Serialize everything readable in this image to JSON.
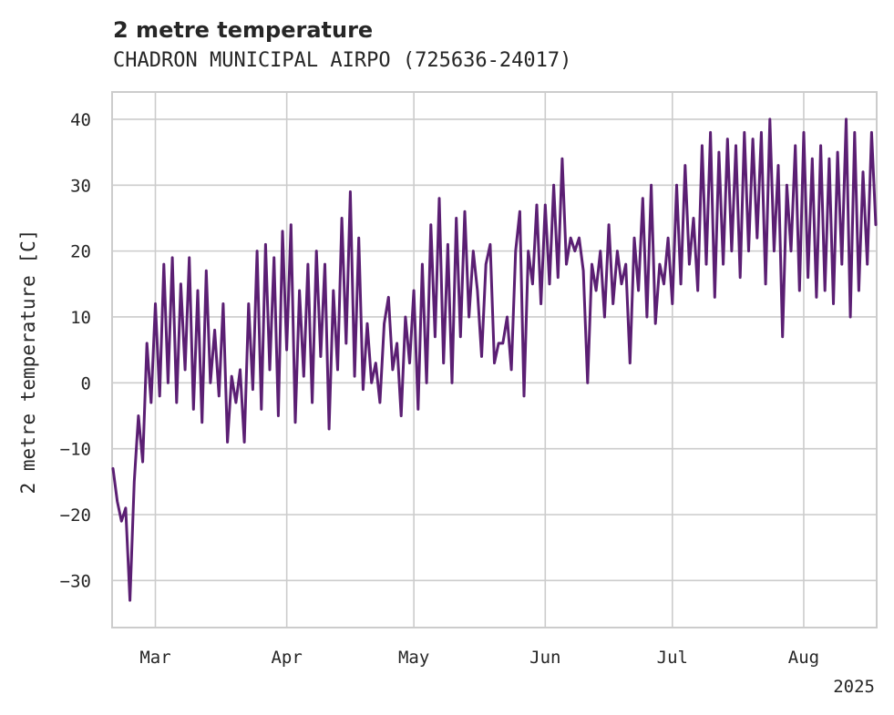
{
  "chart_data": {
    "type": "line",
    "title": "2 metre temperature",
    "subtitle": "CHADRON MUNICIPAL AIRPO (725636-24017)",
    "xlabel": "",
    "ylabel": "2 metre temperature [C]",
    "x_range": [
      "2025-02-19",
      "2025-08-18"
    ],
    "ylim": [
      -37,
      44
    ],
    "x_ticks": [
      {
        "date": "2025-03-01",
        "label": "Mar"
      },
      {
        "date": "2025-04-01",
        "label": "Apr"
      },
      {
        "date": "2025-05-01",
        "label": "May"
      },
      {
        "date": "2025-06-01",
        "label": "Jun"
      },
      {
        "date": "2025-07-01",
        "label": "Jul"
      },
      {
        "date": "2025-08-01",
        "label": "Aug"
      }
    ],
    "x_offset_label": "2025",
    "y_ticks": [
      40,
      30,
      20,
      10,
      0,
      -10,
      -20,
      -30
    ],
    "grid": true,
    "line_color": "#5b1f73",
    "series": [
      {
        "name": "",
        "points": [
          [
            "2025-02-19",
            -13
          ],
          [
            "2025-02-20",
            -18
          ],
          [
            "2025-02-21",
            -21
          ],
          [
            "2025-02-22",
            -19
          ],
          [
            "2025-02-23",
            -33
          ],
          [
            "2025-02-24",
            -15
          ],
          [
            "2025-02-25",
            -5
          ],
          [
            "2025-02-26",
            -12
          ],
          [
            "2025-02-27",
            6
          ],
          [
            "2025-02-28",
            -3
          ],
          [
            "2025-03-01",
            12
          ],
          [
            "2025-03-02",
            -2
          ],
          [
            "2025-03-03",
            18
          ],
          [
            "2025-03-04",
            0
          ],
          [
            "2025-03-05",
            19
          ],
          [
            "2025-03-06",
            -3
          ],
          [
            "2025-03-07",
            15
          ],
          [
            "2025-03-08",
            2
          ],
          [
            "2025-03-09",
            19
          ],
          [
            "2025-03-10",
            -4
          ],
          [
            "2025-03-11",
            14
          ],
          [
            "2025-03-12",
            -6
          ],
          [
            "2025-03-13",
            17
          ],
          [
            "2025-03-14",
            0
          ],
          [
            "2025-03-15",
            8
          ],
          [
            "2025-03-16",
            -2
          ],
          [
            "2025-03-17",
            12
          ],
          [
            "2025-03-18",
            -9
          ],
          [
            "2025-03-19",
            1
          ],
          [
            "2025-03-20",
            -3
          ],
          [
            "2025-03-21",
            2
          ],
          [
            "2025-03-22",
            -9
          ],
          [
            "2025-03-23",
            12
          ],
          [
            "2025-03-24",
            -1
          ],
          [
            "2025-03-25",
            20
          ],
          [
            "2025-03-26",
            -4
          ],
          [
            "2025-03-27",
            21
          ],
          [
            "2025-03-28",
            2
          ],
          [
            "2025-03-29",
            19
          ],
          [
            "2025-03-30",
            -5
          ],
          [
            "2025-03-31",
            23
          ],
          [
            "2025-04-01",
            5
          ],
          [
            "2025-04-02",
            24
          ],
          [
            "2025-04-03",
            -6
          ],
          [
            "2025-04-04",
            14
          ],
          [
            "2025-04-05",
            1
          ],
          [
            "2025-04-06",
            18
          ],
          [
            "2025-04-07",
            -3
          ],
          [
            "2025-04-08",
            20
          ],
          [
            "2025-04-09",
            4
          ],
          [
            "2025-04-10",
            18
          ],
          [
            "2025-04-11",
            -7
          ],
          [
            "2025-04-12",
            14
          ],
          [
            "2025-04-13",
            2
          ],
          [
            "2025-04-14",
            25
          ],
          [
            "2025-04-15",
            6
          ],
          [
            "2025-04-16",
            29
          ],
          [
            "2025-04-17",
            1
          ],
          [
            "2025-04-18",
            22
          ],
          [
            "2025-04-19",
            -1
          ],
          [
            "2025-04-20",
            9
          ],
          [
            "2025-04-21",
            0
          ],
          [
            "2025-04-22",
            3
          ],
          [
            "2025-04-23",
            -3
          ],
          [
            "2025-04-24",
            9
          ],
          [
            "2025-04-25",
            13
          ],
          [
            "2025-04-26",
            2
          ],
          [
            "2025-04-27",
            6
          ],
          [
            "2025-04-28",
            -5
          ],
          [
            "2025-04-29",
            10
          ],
          [
            "2025-04-30",
            3
          ],
          [
            "2025-05-01",
            14
          ],
          [
            "2025-05-02",
            -4
          ],
          [
            "2025-05-03",
            18
          ],
          [
            "2025-05-04",
            0
          ],
          [
            "2025-05-05",
            24
          ],
          [
            "2025-05-06",
            7
          ],
          [
            "2025-05-07",
            28
          ],
          [
            "2025-05-08",
            3
          ],
          [
            "2025-05-09",
            21
          ],
          [
            "2025-05-10",
            0
          ],
          [
            "2025-05-11",
            25
          ],
          [
            "2025-05-12",
            7
          ],
          [
            "2025-05-13",
            26
          ],
          [
            "2025-05-14",
            10
          ],
          [
            "2025-05-15",
            20
          ],
          [
            "2025-05-16",
            14
          ],
          [
            "2025-05-17",
            4
          ],
          [
            "2025-05-18",
            18
          ],
          [
            "2025-05-19",
            21
          ],
          [
            "2025-05-20",
            3
          ],
          [
            "2025-05-21",
            6
          ],
          [
            "2025-05-22",
            6
          ],
          [
            "2025-05-23",
            10
          ],
          [
            "2025-05-24",
            2
          ],
          [
            "2025-05-25",
            20
          ],
          [
            "2025-05-26",
            26
          ],
          [
            "2025-05-27",
            -2
          ],
          [
            "2025-05-28",
            20
          ],
          [
            "2025-05-29",
            15
          ],
          [
            "2025-05-30",
            27
          ],
          [
            "2025-05-31",
            12
          ],
          [
            "2025-06-01",
            27
          ],
          [
            "2025-06-02",
            15
          ],
          [
            "2025-06-03",
            30
          ],
          [
            "2025-06-04",
            16
          ],
          [
            "2025-06-05",
            34
          ],
          [
            "2025-06-06",
            18
          ],
          [
            "2025-06-07",
            22
          ],
          [
            "2025-06-08",
            20
          ],
          [
            "2025-06-09",
            22
          ],
          [
            "2025-06-10",
            17
          ],
          [
            "2025-06-11",
            0
          ],
          [
            "2025-06-12",
            18
          ],
          [
            "2025-06-13",
            14
          ],
          [
            "2025-06-14",
            20
          ],
          [
            "2025-06-15",
            10
          ],
          [
            "2025-06-16",
            24
          ],
          [
            "2025-06-17",
            12
          ],
          [
            "2025-06-18",
            20
          ],
          [
            "2025-06-19",
            15
          ],
          [
            "2025-06-20",
            18
          ],
          [
            "2025-06-21",
            3
          ],
          [
            "2025-06-22",
            22
          ],
          [
            "2025-06-23",
            14
          ],
          [
            "2025-06-24",
            28
          ],
          [
            "2025-06-25",
            10
          ],
          [
            "2025-06-26",
            30
          ],
          [
            "2025-06-27",
            9
          ],
          [
            "2025-06-28",
            18
          ],
          [
            "2025-06-29",
            15
          ],
          [
            "2025-06-30",
            22
          ],
          [
            "2025-07-01",
            12
          ],
          [
            "2025-07-02",
            30
          ],
          [
            "2025-07-03",
            15
          ],
          [
            "2025-07-04",
            33
          ],
          [
            "2025-07-05",
            18
          ],
          [
            "2025-07-06",
            25
          ],
          [
            "2025-07-07",
            14
          ],
          [
            "2025-07-08",
            36
          ],
          [
            "2025-07-09",
            18
          ],
          [
            "2025-07-10",
            38
          ],
          [
            "2025-07-11",
            13
          ],
          [
            "2025-07-12",
            35
          ],
          [
            "2025-07-13",
            18
          ],
          [
            "2025-07-14",
            37
          ],
          [
            "2025-07-15",
            20
          ],
          [
            "2025-07-16",
            36
          ],
          [
            "2025-07-17",
            16
          ],
          [
            "2025-07-18",
            38
          ],
          [
            "2025-07-19",
            20
          ],
          [
            "2025-07-20",
            37
          ],
          [
            "2025-07-21",
            22
          ],
          [
            "2025-07-22",
            38
          ],
          [
            "2025-07-23",
            15
          ],
          [
            "2025-07-24",
            40
          ],
          [
            "2025-07-25",
            20
          ],
          [
            "2025-07-26",
            33
          ],
          [
            "2025-07-27",
            7
          ],
          [
            "2025-07-28",
            30
          ],
          [
            "2025-07-29",
            20
          ],
          [
            "2025-07-30",
            36
          ],
          [
            "2025-07-31",
            14
          ],
          [
            "2025-08-01",
            38
          ],
          [
            "2025-08-02",
            16
          ],
          [
            "2025-08-03",
            34
          ],
          [
            "2025-08-04",
            13
          ],
          [
            "2025-08-05",
            36
          ],
          [
            "2025-08-06",
            14
          ],
          [
            "2025-08-07",
            34
          ],
          [
            "2025-08-08",
            12
          ],
          [
            "2025-08-09",
            35
          ],
          [
            "2025-08-10",
            18
          ],
          [
            "2025-08-11",
            40
          ],
          [
            "2025-08-12",
            10
          ],
          [
            "2025-08-13",
            38
          ],
          [
            "2025-08-14",
            14
          ],
          [
            "2025-08-15",
            32
          ],
          [
            "2025-08-16",
            18
          ],
          [
            "2025-08-17",
            38
          ],
          [
            "2025-08-18",
            24
          ]
        ]
      }
    ]
  }
}
